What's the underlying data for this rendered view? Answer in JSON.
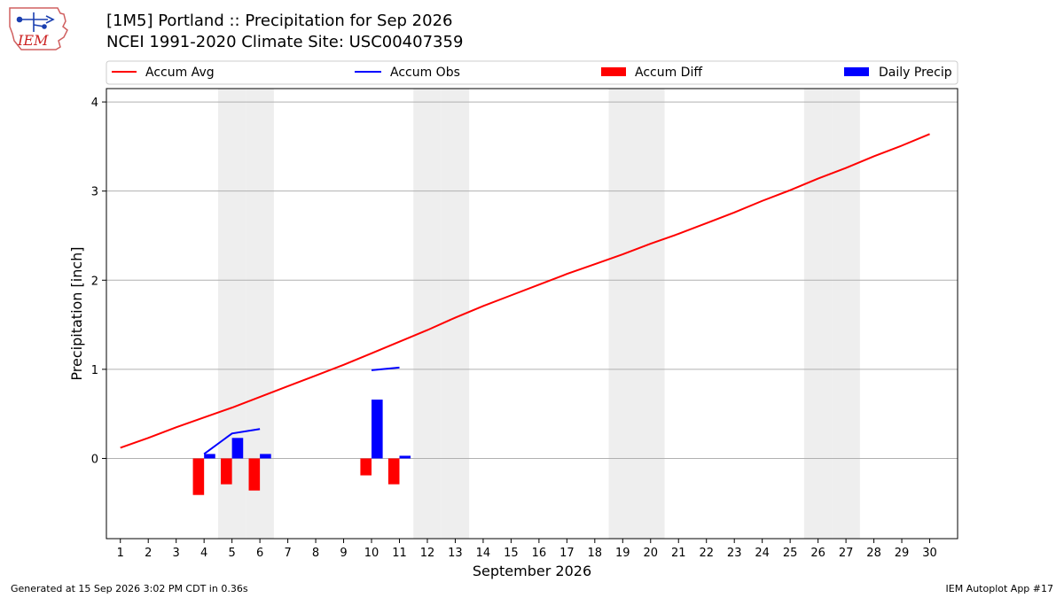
{
  "header": {
    "title_line1": "[1M5] Portland :: Precipitation for Sep 2026",
    "title_line2": "NCEI 1991-2020 Climate Site: USC00407359",
    "logo_text": "IEM"
  },
  "footer": {
    "generated": "Generated at 15 Sep 2026 3:02 PM CDT in 0.36s",
    "app": "IEM Autoplot App #17"
  },
  "colors": {
    "accum_avg": "#ff0000",
    "accum_obs": "#0000ff",
    "accum_diff": "#ff0000",
    "daily_precip": "#0000ff",
    "weekend_shade": "#eeeeee",
    "grid": "#b0b0b0"
  },
  "chart_data": {
    "type": "bar",
    "xlabel": "September 2026",
    "ylabel": "Precipitation [inch]",
    "xlim": [
      0.5,
      31.0
    ],
    "ylim": [
      -0.9,
      4.15
    ],
    "yticks": [
      0,
      1,
      2,
      3,
      4
    ],
    "x": [
      1,
      2,
      3,
      4,
      5,
      6,
      7,
      8,
      9,
      10,
      11,
      12,
      13,
      14,
      15,
      16,
      17,
      18,
      19,
      20,
      21,
      22,
      23,
      24,
      25,
      26,
      27,
      28,
      29,
      30
    ],
    "legend": {
      "placement": "top",
      "entries": [
        "Accum Avg",
        "Accum Obs",
        "Accum Diff",
        "Daily Precip"
      ]
    },
    "grid": "y",
    "weekend_days": [
      5,
      6,
      12,
      13,
      19,
      20,
      26,
      27
    ],
    "series": [
      {
        "name": "Accum Avg",
        "type": "line",
        "x": [
          1,
          2,
          3,
          4,
          5,
          6,
          7,
          8,
          9,
          10,
          11,
          12,
          13,
          14,
          15,
          16,
          17,
          18,
          19,
          20,
          21,
          22,
          23,
          24,
          25,
          26,
          27,
          28,
          29,
          30
        ],
        "values": [
          0.12,
          0.23,
          0.35,
          0.46,
          0.57,
          0.69,
          0.81,
          0.93,
          1.05,
          1.18,
          1.31,
          1.44,
          1.58,
          1.71,
          1.83,
          1.95,
          2.07,
          2.18,
          2.29,
          2.41,
          2.52,
          2.64,
          2.76,
          2.89,
          3.01,
          3.14,
          3.26,
          3.39,
          3.51,
          3.64
        ]
      },
      {
        "name": "Accum Obs",
        "type": "line",
        "segments": [
          {
            "x": [
              4,
              5,
              6
            ],
            "values": [
              0.05,
              0.28,
              0.33
            ]
          },
          {
            "x": [
              10,
              11
            ],
            "values": [
              0.99,
              1.02
            ]
          }
        ]
      },
      {
        "name": "Accum Diff",
        "type": "bar",
        "x": [
          4,
          5,
          6,
          10,
          11
        ],
        "values": [
          -0.41,
          -0.29,
          -0.36,
          -0.19,
          -0.29
        ]
      },
      {
        "name": "Daily Precip",
        "type": "bar",
        "x": [
          4,
          5,
          6,
          10,
          11
        ],
        "values": [
          0.05,
          0.23,
          0.05,
          0.66,
          0.03
        ]
      }
    ]
  }
}
